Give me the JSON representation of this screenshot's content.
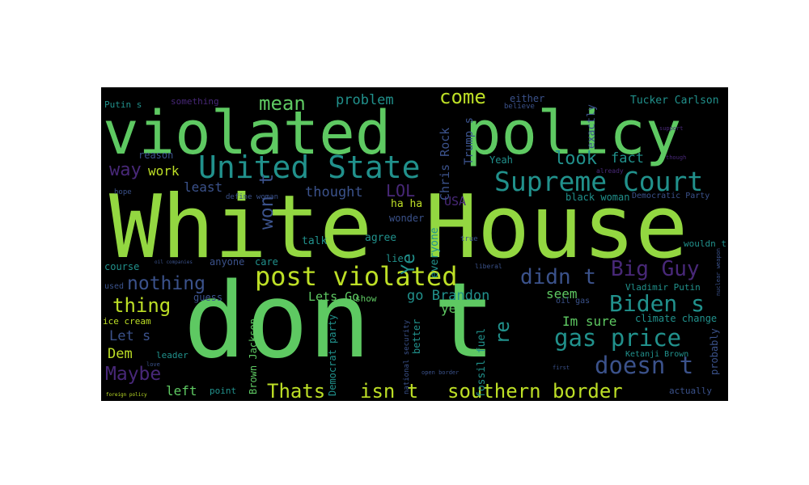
{
  "words": {
    "white_house": "White House",
    "dont": "don t",
    "violated": "violated",
    "policy": "policy",
    "united_state": "United State",
    "supreme_court": "Supreme Court",
    "post_violated": "post violated",
    "southern_border": "southern border",
    "isnt": "isn t",
    "thats": "Thats",
    "biden_s": "Biden s",
    "gas_price": "gas price",
    "doesn_t": "doesn t",
    "didn_t": "didn t",
    "big_guy": "Big Guy",
    "nothing": "nothing",
    "thing": "thing",
    "maybe": "Maybe",
    "mean": "mean",
    "problem": "problem",
    "come": "come",
    "look": "look",
    "fact": "fact",
    "way": "way",
    "work": "work",
    "least": "least",
    "thought": "thought",
    "lol": "LOL",
    "wont": "won t",
    "ye": "Ye",
    "re": "re",
    "im_sure": "Im sure",
    "seem": "seem",
    "yet": "yet",
    "go_brandon": "go Brandon",
    "lets_go": "Lets Go",
    "lets": "Let s",
    "dem": "Dem",
    "left": "left",
    "chris_rock": "Chris Rock",
    "trumps": "Trump s",
    "usa": "USA",
    "tucker_carlson": "Tucker Carlson",
    "putins": "Putin s",
    "something": "something",
    "either": "either",
    "believe": "believe",
    "exactly": "exactly",
    "yeah": "Yeah",
    "reason": "reason",
    "hope": "hope",
    "define_woman": "define woman",
    "black_woman": "black woman",
    "democratic_party": "Democratic Party",
    "ha_ha": "ha ha",
    "wonder": "wonder",
    "agree": "agree",
    "talk": "talk",
    "everyone": "everyone",
    "true": "true",
    "course": "course",
    "anyone": "anyone",
    "care": "care",
    "lie": "lie",
    "used": "used",
    "guess": "guess",
    "show": "show",
    "oil_gas": "oil gas",
    "ice_cream": "ice cream",
    "climate_change": "climate change",
    "vladimir_putin": "Vladimir Putin",
    "leader": "leader",
    "point": "point",
    "actually": "actually",
    "probably": "probably",
    "ketanji_brown": "Ketanji Brown",
    "brown_jackson": "Brown Jackson",
    "democrat_party": "Democrat party",
    "national_security": "national security",
    "better": "better",
    "fossil_fuel": "fossil fuel",
    "wouldn_t": "wouldn t",
    "foreign_policy": "foreign policy",
    "already": "already",
    "support": "support",
    "though": "though",
    "oil_companies": "oil companies",
    "love": "love",
    "first": "first",
    "open_border": "open border",
    "nuclear_weapon": "nuclear weapon",
    "liberal": "liberal"
  },
  "colors": {
    "background": "#000000",
    "light_green": "#93d741",
    "green": "#5ec962",
    "teal": "#21918c",
    "steel_blue": "#3b528b",
    "purple": "#440154",
    "dark_purple": "#482878",
    "yellow_green": "#bddf26"
  }
}
